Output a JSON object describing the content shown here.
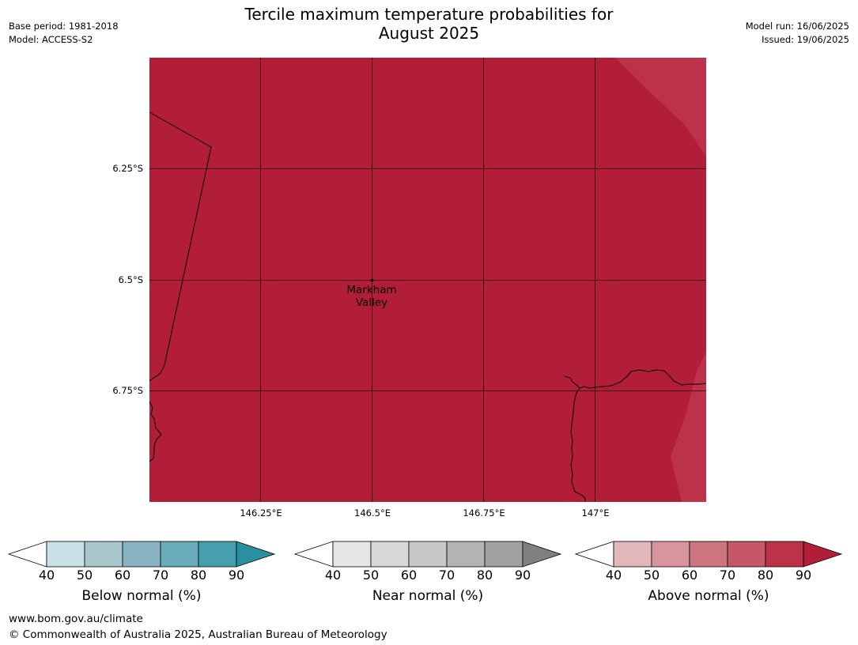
{
  "header": {
    "title_line1": "Tercile maximum temperature probabilities for",
    "title_line2": "August 2025",
    "base_period": "Base period: 1981-2018",
    "model": "Model: ACCESS-S2",
    "model_run": "Model run: 16/06/2025",
    "issued": "Issued: 19/06/2025"
  },
  "map": {
    "latitude_labels": [
      "6.25°S",
      "6.5°S",
      "6.75°S"
    ],
    "longitude_labels": [
      "146.25°E",
      "146.5°E",
      "146.75°E",
      "147°E"
    ],
    "place": {
      "name_line1": "Markham",
      "name_line2": "Valley"
    },
    "fill_colors": {
      "above_90": "#b21d38",
      "above_80": "#bc3349"
    }
  },
  "colorbars": [
    {
      "label": "Below normal (%)",
      "ticks": [
        "40",
        "50",
        "60",
        "70",
        "80",
        "90"
      ],
      "colors": [
        "#ffffff",
        "#c8e1e6",
        "#a7c7cd",
        "#88b4c1",
        "#6aabb9",
        "#459faf",
        "#2b8f9f"
      ]
    },
    {
      "label": "Near normal (%)",
      "ticks": [
        "40",
        "50",
        "60",
        "70",
        "80",
        "90"
      ],
      "colors": [
        "#ffffff",
        "#e6e6e6",
        "#d8d8d8",
        "#c8c8c8",
        "#b5b5b5",
        "#a0a0a0",
        "#808080"
      ]
    },
    {
      "label": "Above normal (%)",
      "ticks": [
        "40",
        "50",
        "60",
        "70",
        "80",
        "90"
      ],
      "colors": [
        "#ffffff",
        "#e2b7bc",
        "#d8959d",
        "#cd767f",
        "#c65768",
        "#bc3349",
        "#b21d38"
      ]
    }
  ],
  "footer": {
    "url": "www.bom.gov.au/climate",
    "copyright": "© Commonwealth of Australia 2025, Australian Bureau of Meteorology"
  }
}
